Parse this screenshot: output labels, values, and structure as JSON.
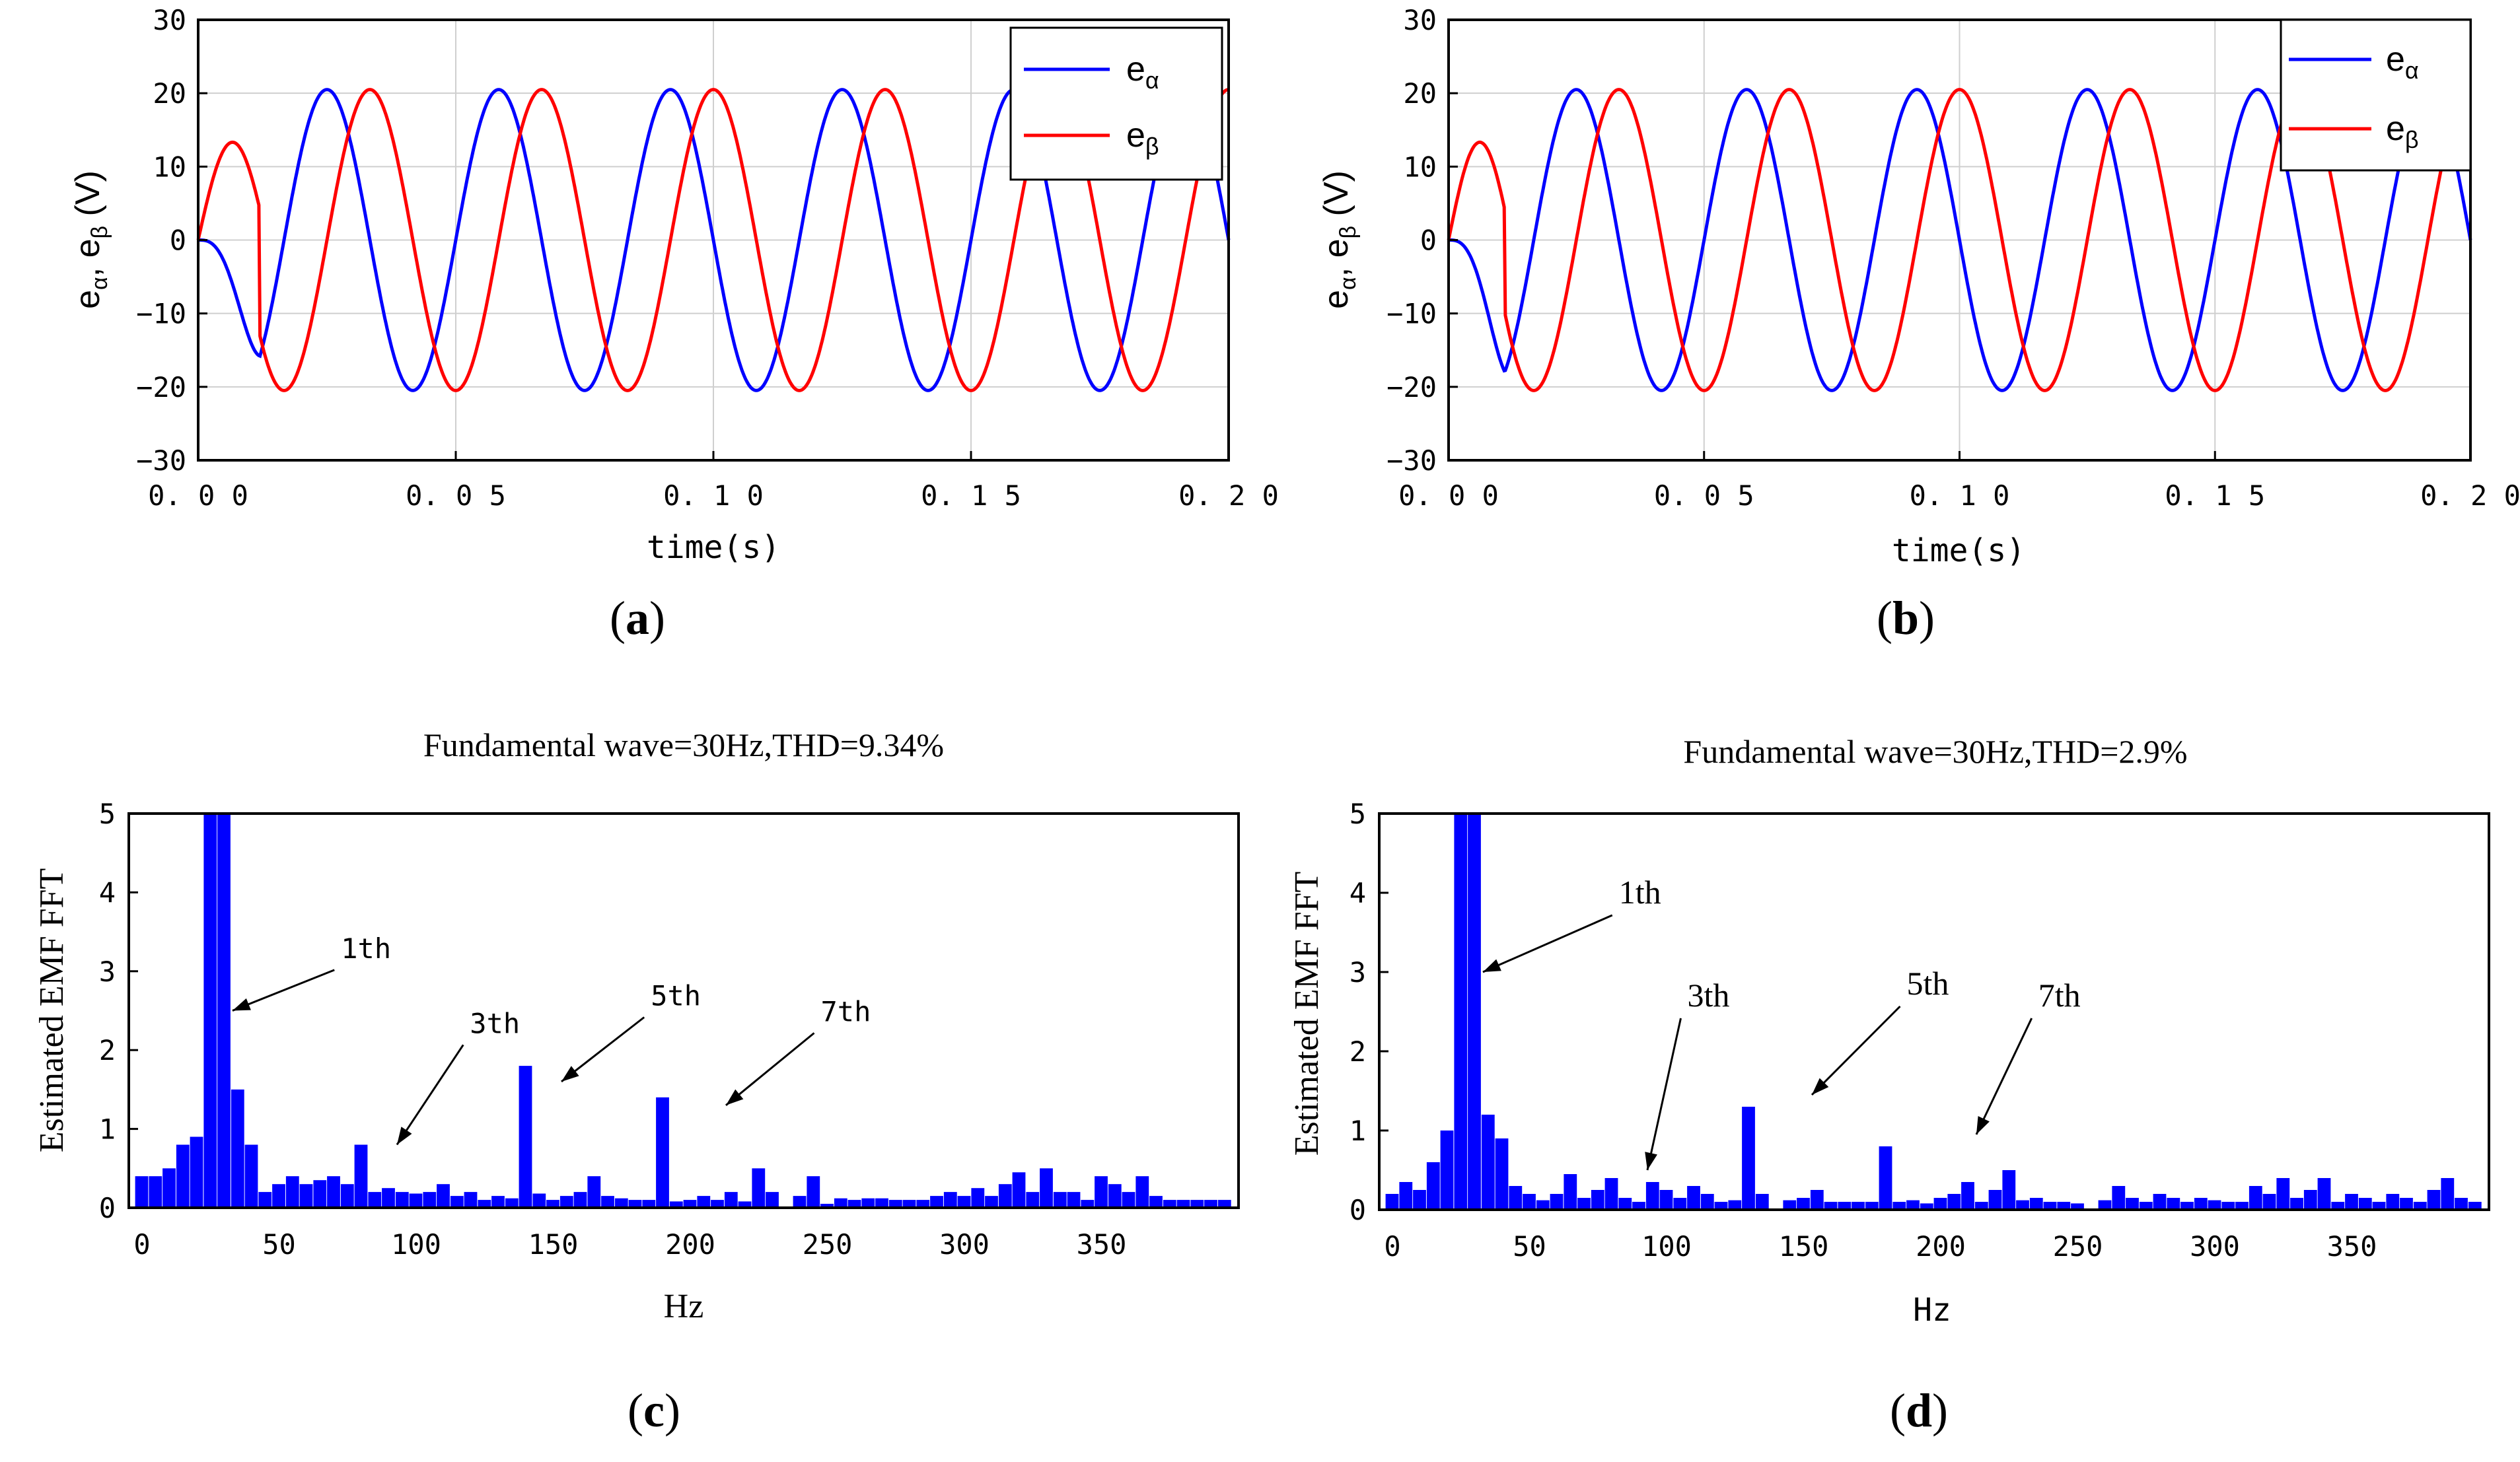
{
  "chart_data": [
    {
      "id": "a",
      "type": "line",
      "panel_label_open": "(",
      "panel_label_letter": "a",
      "panel_label_close": ")",
      "xlabel": "time(s)",
      "ylabel_main": "e",
      "ylabel_sub1": "α",
      "ylabel_sep": ", e",
      "ylabel_sub2": "β",
      "ylabel_unit": " (V)",
      "xlim": [
        0,
        0.2
      ],
      "ylim": [
        -30,
        30
      ],
      "xticks": [
        "0.00",
        "0.05",
        "0.10",
        "0.15",
        "0.20"
      ],
      "yticks": [
        "30",
        "20",
        "10",
        "0",
        "−10",
        "−20",
        "−30"
      ],
      "grid": true,
      "legend": "top-right",
      "series": [
        {
          "name_main": "e",
          "name_sub": "α",
          "color": "#0000ff",
          "amplitude": 20.5,
          "frequency_hz": 30,
          "waveform": "-sin",
          "startup_s": 0.012
        },
        {
          "name_main": "e",
          "name_sub": "β",
          "color": "#ff0000",
          "amplitude": 20.5,
          "frequency_hz": 30,
          "waveform": "cos",
          "startup_s": 0.012
        }
      ]
    },
    {
      "id": "b",
      "type": "line",
      "panel_label_open": "(",
      "panel_label_letter": "b",
      "panel_label_close": ")",
      "xlabel": "time(s)",
      "ylabel_main": "e",
      "ylabel_sub1": "α",
      "ylabel_sep": ", e",
      "ylabel_sub2": "β",
      "ylabel_unit": " (V)",
      "xlim": [
        0,
        0.2
      ],
      "ylim": [
        -30,
        30
      ],
      "xticks": [
        "0.00",
        "0.05",
        "0.10",
        "0.15",
        "0.20"
      ],
      "yticks": [
        "30",
        "20",
        "10",
        "0",
        "−10",
        "−20",
        "−30"
      ],
      "grid": true,
      "legend": "top-right",
      "series": [
        {
          "name_main": "e",
          "name_sub": "α",
          "color": "#0000ff",
          "amplitude": 20.5,
          "frequency_hz": 30,
          "waveform": "-sin",
          "startup_s": 0.011
        },
        {
          "name_main": "e",
          "name_sub": "β",
          "color": "#ff0000",
          "amplitude": 20.5,
          "frequency_hz": 30,
          "waveform": "cos",
          "startup_s": 0.011
        }
      ]
    },
    {
      "id": "c",
      "type": "bar",
      "title": "Fundamental wave=30Hz,THD=9.34%",
      "panel_label_open": "(",
      "panel_label_letter": "c",
      "panel_label_close": ")",
      "xlabel": "Hz",
      "ylabel": "Estimated EMF FFT",
      "xlim": [
        0,
        400
      ],
      "ylim": [
        0,
        5
      ],
      "xticks": [
        "0",
        "50",
        "100",
        "150",
        "200",
        "250",
        "300",
        "350"
      ],
      "yticks": [
        "5",
        "4",
        "3",
        "2",
        "1",
        "0"
      ],
      "bar_color": "#0000ff",
      "bar_width_hz": 5,
      "x": [
        0,
        5,
        10,
        15,
        20,
        25,
        30,
        35,
        40,
        45,
        50,
        55,
        60,
        65,
        70,
        75,
        80,
        85,
        90,
        95,
        100,
        105,
        110,
        115,
        120,
        125,
        130,
        135,
        140,
        145,
        150,
        155,
        160,
        165,
        170,
        175,
        180,
        185,
        190,
        195,
        200,
        205,
        210,
        215,
        220,
        225,
        230,
        235,
        240,
        245,
        250,
        255,
        260,
        265,
        270,
        275,
        280,
        285,
        290,
        295,
        300,
        305,
        310,
        315,
        320,
        325,
        330,
        335,
        340,
        345,
        350,
        355,
        360,
        365,
        370,
        375,
        380,
        385,
        390,
        395
      ],
      "values": [
        0.4,
        0.4,
        0.5,
        0.8,
        0.9,
        5.0,
        5.0,
        1.5,
        0.8,
        0.2,
        0.3,
        0.4,
        0.3,
        0.35,
        0.4,
        0.3,
        0.8,
        0.2,
        0.25,
        0.2,
        0.18,
        0.2,
        0.3,
        0.15,
        0.2,
        0.1,
        0.15,
        0.12,
        1.8,
        0.18,
        0.1,
        0.15,
        0.2,
        0.4,
        0.15,
        0.12,
        0.1,
        0.1,
        1.4,
        0.08,
        0.1,
        0.15,
        0.1,
        0.2,
        0.08,
        0.5,
        0.2,
        0.0,
        0.15,
        0.4,
        0.05,
        0.12,
        0.1,
        0.12,
        0.12,
        0.1,
        0.1,
        0.1,
        0.15,
        0.2,
        0.15,
        0.25,
        0.15,
        0.3,
        0.45,
        0.2,
        0.5,
        0.2,
        0.2,
        0.1,
        0.4,
        0.3,
        0.2,
        0.4,
        0.15,
        0.1,
        0.1,
        0.1,
        0.1,
        0.1
      ],
      "annotations": [
        {
          "text": "1th",
          "x": 30,
          "y": 2.5,
          "label_x": 75,
          "label_y": 3.1,
          "font": "mono"
        },
        {
          "text": "3th",
          "x": 90,
          "y": 0.8,
          "label_x": 122,
          "label_y": 2.15,
          "font": "mono"
        },
        {
          "text": "5th",
          "x": 150,
          "y": 1.6,
          "label_x": 188,
          "label_y": 2.5,
          "font": "mono"
        },
        {
          "text": "7th",
          "x": 210,
          "y": 1.3,
          "label_x": 250,
          "label_y": 2.3,
          "font": "mono"
        }
      ]
    },
    {
      "id": "d",
      "type": "bar",
      "title": "Fundamental wave=30Hz,THD=2.9%",
      "panel_label_open": "(",
      "panel_label_letter": "d",
      "panel_label_close": ")",
      "xlabel": "Hz",
      "ylabel": "Estimated EMF FFT",
      "xlim": [
        0,
        400
      ],
      "ylim": [
        0,
        5
      ],
      "xticks": [
        "0",
        "50",
        "100",
        "150",
        "200",
        "250",
        "300",
        "350"
      ],
      "yticks": [
        "5",
        "4",
        "3",
        "2",
        "1",
        "0"
      ],
      "bar_color": "#0000ff",
      "bar_width_hz": 5,
      "x": [
        0,
        5,
        10,
        15,
        20,
        25,
        30,
        35,
        40,
        45,
        50,
        55,
        60,
        65,
        70,
        75,
        80,
        85,
        90,
        95,
        100,
        105,
        110,
        115,
        120,
        125,
        130,
        135,
        140,
        145,
        150,
        155,
        160,
        165,
        170,
        175,
        180,
        185,
        190,
        195,
        200,
        205,
        210,
        215,
        220,
        225,
        230,
        235,
        240,
        245,
        250,
        255,
        260,
        265,
        270,
        275,
        280,
        285,
        290,
        295,
        300,
        305,
        310,
        315,
        320,
        325,
        330,
        335,
        340,
        345,
        350,
        355,
        360,
        365,
        370,
        375,
        380,
        385,
        390,
        395
      ],
      "values": [
        0.2,
        0.35,
        0.25,
        0.6,
        1.0,
        5.0,
        5.0,
        1.2,
        0.9,
        0.3,
        0.2,
        0.12,
        0.2,
        0.45,
        0.15,
        0.25,
        0.4,
        0.15,
        0.1,
        0.35,
        0.25,
        0.15,
        0.3,
        0.2,
        0.1,
        0.12,
        1.3,
        0.2,
        0.0,
        0.12,
        0.15,
        0.25,
        0.1,
        0.1,
        0.1,
        0.1,
        0.8,
        0.1,
        0.12,
        0.08,
        0.15,
        0.2,
        0.35,
        0.1,
        0.25,
        0.5,
        0.12,
        0.15,
        0.1,
        0.1,
        0.08,
        0.0,
        0.12,
        0.3,
        0.15,
        0.1,
        0.2,
        0.15,
        0.1,
        0.15,
        0.12,
        0.1,
        0.1,
        0.3,
        0.2,
        0.4,
        0.15,
        0.25,
        0.4,
        0.1,
        0.2,
        0.15,
        0.1,
        0.2,
        0.15,
        0.1,
        0.25,
        0.4,
        0.15,
        0.1
      ],
      "annotations": [
        {
          "text": "1th",
          "x": 30,
          "y": 3.0,
          "label_x": 85,
          "label_y": 3.8,
          "font": "serif"
        },
        {
          "text": "3th",
          "x": 90,
          "y": 0.5,
          "label_x": 110,
          "label_y": 2.5,
          "font": "serif"
        },
        {
          "text": "5th",
          "x": 150,
          "y": 1.45,
          "label_x": 190,
          "label_y": 2.65,
          "font": "serif"
        },
        {
          "text": "7th",
          "x": 210,
          "y": 0.95,
          "label_x": 238,
          "label_y": 2.5,
          "font": "serif"
        }
      ]
    }
  ]
}
